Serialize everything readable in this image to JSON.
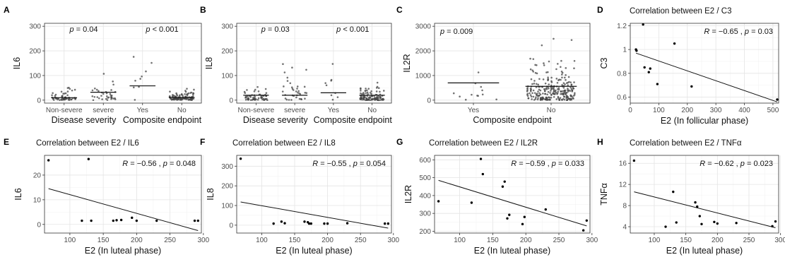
{
  "chart_data": [
    {
      "type": "scatter",
      "panel": "A",
      "ylabel": "IL6",
      "ylim": [
        0,
        300
      ],
      "yticks": [
        "0",
        "100",
        "200",
        "300"
      ],
      "groups": [
        "Disease severity",
        "Composite endpoint"
      ],
      "categories": [
        "Non-severe",
        "severe",
        "Yes",
        "No"
      ],
      "medians": [
        10,
        32,
        58,
        10
      ],
      "annotations": [
        {
          "text_p": "p",
          "text_val": " = 0.04"
        },
        {
          "text_p": "p",
          "text_val": " < 0.001"
        }
      ]
    },
    {
      "type": "scatter",
      "panel": "B",
      "ylabel": "IL8",
      "ylim": [
        0,
        300
      ],
      "yticks": [
        "0",
        "100",
        "200",
        "300"
      ],
      "groups": [
        "Disease severity",
        "Composite endpoint"
      ],
      "categories": [
        "Non-severe",
        "severe",
        "Yes",
        "No"
      ],
      "medians": [
        20,
        20,
        30,
        20
      ],
      "annotations": [
        {
          "text_p": "p",
          "text_val": " = 0.03"
        },
        {
          "text_p": "p",
          "text_val": " < 0.001"
        }
      ]
    },
    {
      "type": "scatter",
      "panel": "C",
      "ylabel": "IL2R",
      "ylim": [
        0,
        3000
      ],
      "yticks": [
        "0",
        "1000",
        "2000",
        "3000"
      ],
      "xlabel": "Composite endpoint",
      "categories": [
        "Yes",
        "No"
      ],
      "medians": [
        700,
        560
      ],
      "annotations": [
        {
          "text_p": "p",
          "text_val": " = 0.009"
        }
      ]
    },
    {
      "type": "scatter",
      "panel": "D",
      "title": "Correlation between E2 / C3",
      "xlabel": "E2 (In follicular phase)",
      "ylabel": "C3",
      "xlim": [
        0,
        520
      ],
      "ylim": [
        0.55,
        1.22
      ],
      "xticks": [
        0,
        100,
        200,
        300,
        400,
        500
      ],
      "yticks": [
        0.6,
        0.8,
        1.0,
        1.2
      ],
      "x": [
        20,
        22,
        45,
        50,
        65,
        70,
        95,
        155,
        215,
        515
      ],
      "y": [
        1.0,
        0.99,
        1.21,
        0.85,
        0.81,
        0.84,
        0.71,
        1.05,
        0.69,
        0.58
      ],
      "fit": [
        [
          20,
          0.97
        ],
        [
          515,
          0.56
        ]
      ],
      "stat": {
        "R": "R",
        "R_val": " = −0.65 , ",
        "p": "p",
        "p_val": " = 0.03"
      }
    },
    {
      "type": "scatter",
      "panel": "E",
      "title": "Correlation between E2 / IL6",
      "xlabel": "E2 (In luteal phase)",
      "ylabel": "IL6",
      "xlim": [
        62,
        297
      ],
      "ylim": [
        -3.5,
        28
      ],
      "xticks": [
        100,
        150,
        200,
        250,
        300
      ],
      "yticks": [
        0,
        10,
        20
      ],
      "x": [
        68,
        118,
        128,
        132,
        165,
        170,
        177,
        193,
        200,
        230,
        287,
        292
      ],
      "y": [
        26,
        1.5,
        26.5,
        1.5,
        1.5,
        1.7,
        1.8,
        2.7,
        1.5,
        1.5,
        1.5,
        1.5
      ],
      "fit": [
        [
          68,
          14.5
        ],
        [
          292,
          -2.5
        ]
      ],
      "stat": {
        "R": "R",
        "R_val": " = −0.56 , ",
        "p": "p",
        "p_val": " = 0.048"
      }
    },
    {
      "type": "scatter",
      "panel": "F",
      "title": "Correlation between E2 / IL8",
      "xlabel": "E2 (In luteal phase)",
      "ylabel": "IL8",
      "xlim": [
        62,
        297
      ],
      "ylim": [
        -40,
        355
      ],
      "xticks": [
        100,
        150,
        200,
        250,
        300
      ],
      "yticks": [
        0,
        100,
        200,
        300
      ],
      "x": [
        68,
        118,
        130,
        135,
        165,
        170,
        172,
        175,
        195,
        200,
        230,
        287,
        292
      ],
      "y": [
        338,
        8,
        18,
        10,
        18,
        15,
        8,
        8,
        8,
        8,
        10,
        8,
        8
      ],
      "fit": [
        [
          68,
          118
        ],
        [
          292,
          -15
        ]
      ],
      "stat": {
        "R": "R",
        "R_val": " = −0.55 , ",
        "p": "p",
        "p_val": " = 0.054"
      }
    },
    {
      "type": "scatter",
      "panel": "G",
      "title": "Correlation between E2 / IL2R",
      "xlabel": "E2 (In luteal phase)",
      "ylabel": "IL2R",
      "xlim": [
        62,
        297
      ],
      "ylim": [
        190,
        625
      ],
      "xticks": [
        100,
        150,
        200,
        250,
        300
      ],
      "yticks": [
        200,
        300,
        400,
        500,
        600
      ],
      "x": [
        68,
        118,
        132,
        135,
        165,
        168,
        172,
        175,
        195,
        198,
        230,
        287,
        292
      ],
      "y": [
        368,
        360,
        605,
        520,
        450,
        478,
        272,
        292,
        240,
        280,
        322,
        205,
        260
      ],
      "fit": [
        [
          68,
          485
        ],
        [
          292,
          230
        ]
      ],
      "stat": {
        "R": "R",
        "R_val": " = −0.59 , ",
        "p": "p",
        "p_val": " = 0.033"
      }
    },
    {
      "type": "scatter",
      "panel": "H",
      "title": "Correlation between E2 / TNFα",
      "xlabel": "E2 (In luteal phase)",
      "ylabel": "TNFα",
      "xlim": [
        62,
        297
      ],
      "ylim": [
        2.8,
        17.5
      ],
      "xticks": [
        100,
        150,
        200,
        250,
        300
      ],
      "yticks": [
        4,
        8,
        12,
        16
      ],
      "x": [
        68,
        118,
        130,
        135,
        165,
        168,
        172,
        175,
        195,
        200,
        230,
        287,
        292
      ],
      "y": [
        16.5,
        4.0,
        10.6,
        4.8,
        8.6,
        7.8,
        6.0,
        4.5,
        4.9,
        4.6,
        4.7,
        4.1,
        5.0
      ],
      "fit": [
        [
          68,
          10.6
        ],
        [
          292,
          3.8
        ]
      ],
      "stat": {
        "R": "R",
        "R_val": " = −0.62 , ",
        "p": "p",
        "p_val": " = 0.023"
      }
    }
  ]
}
